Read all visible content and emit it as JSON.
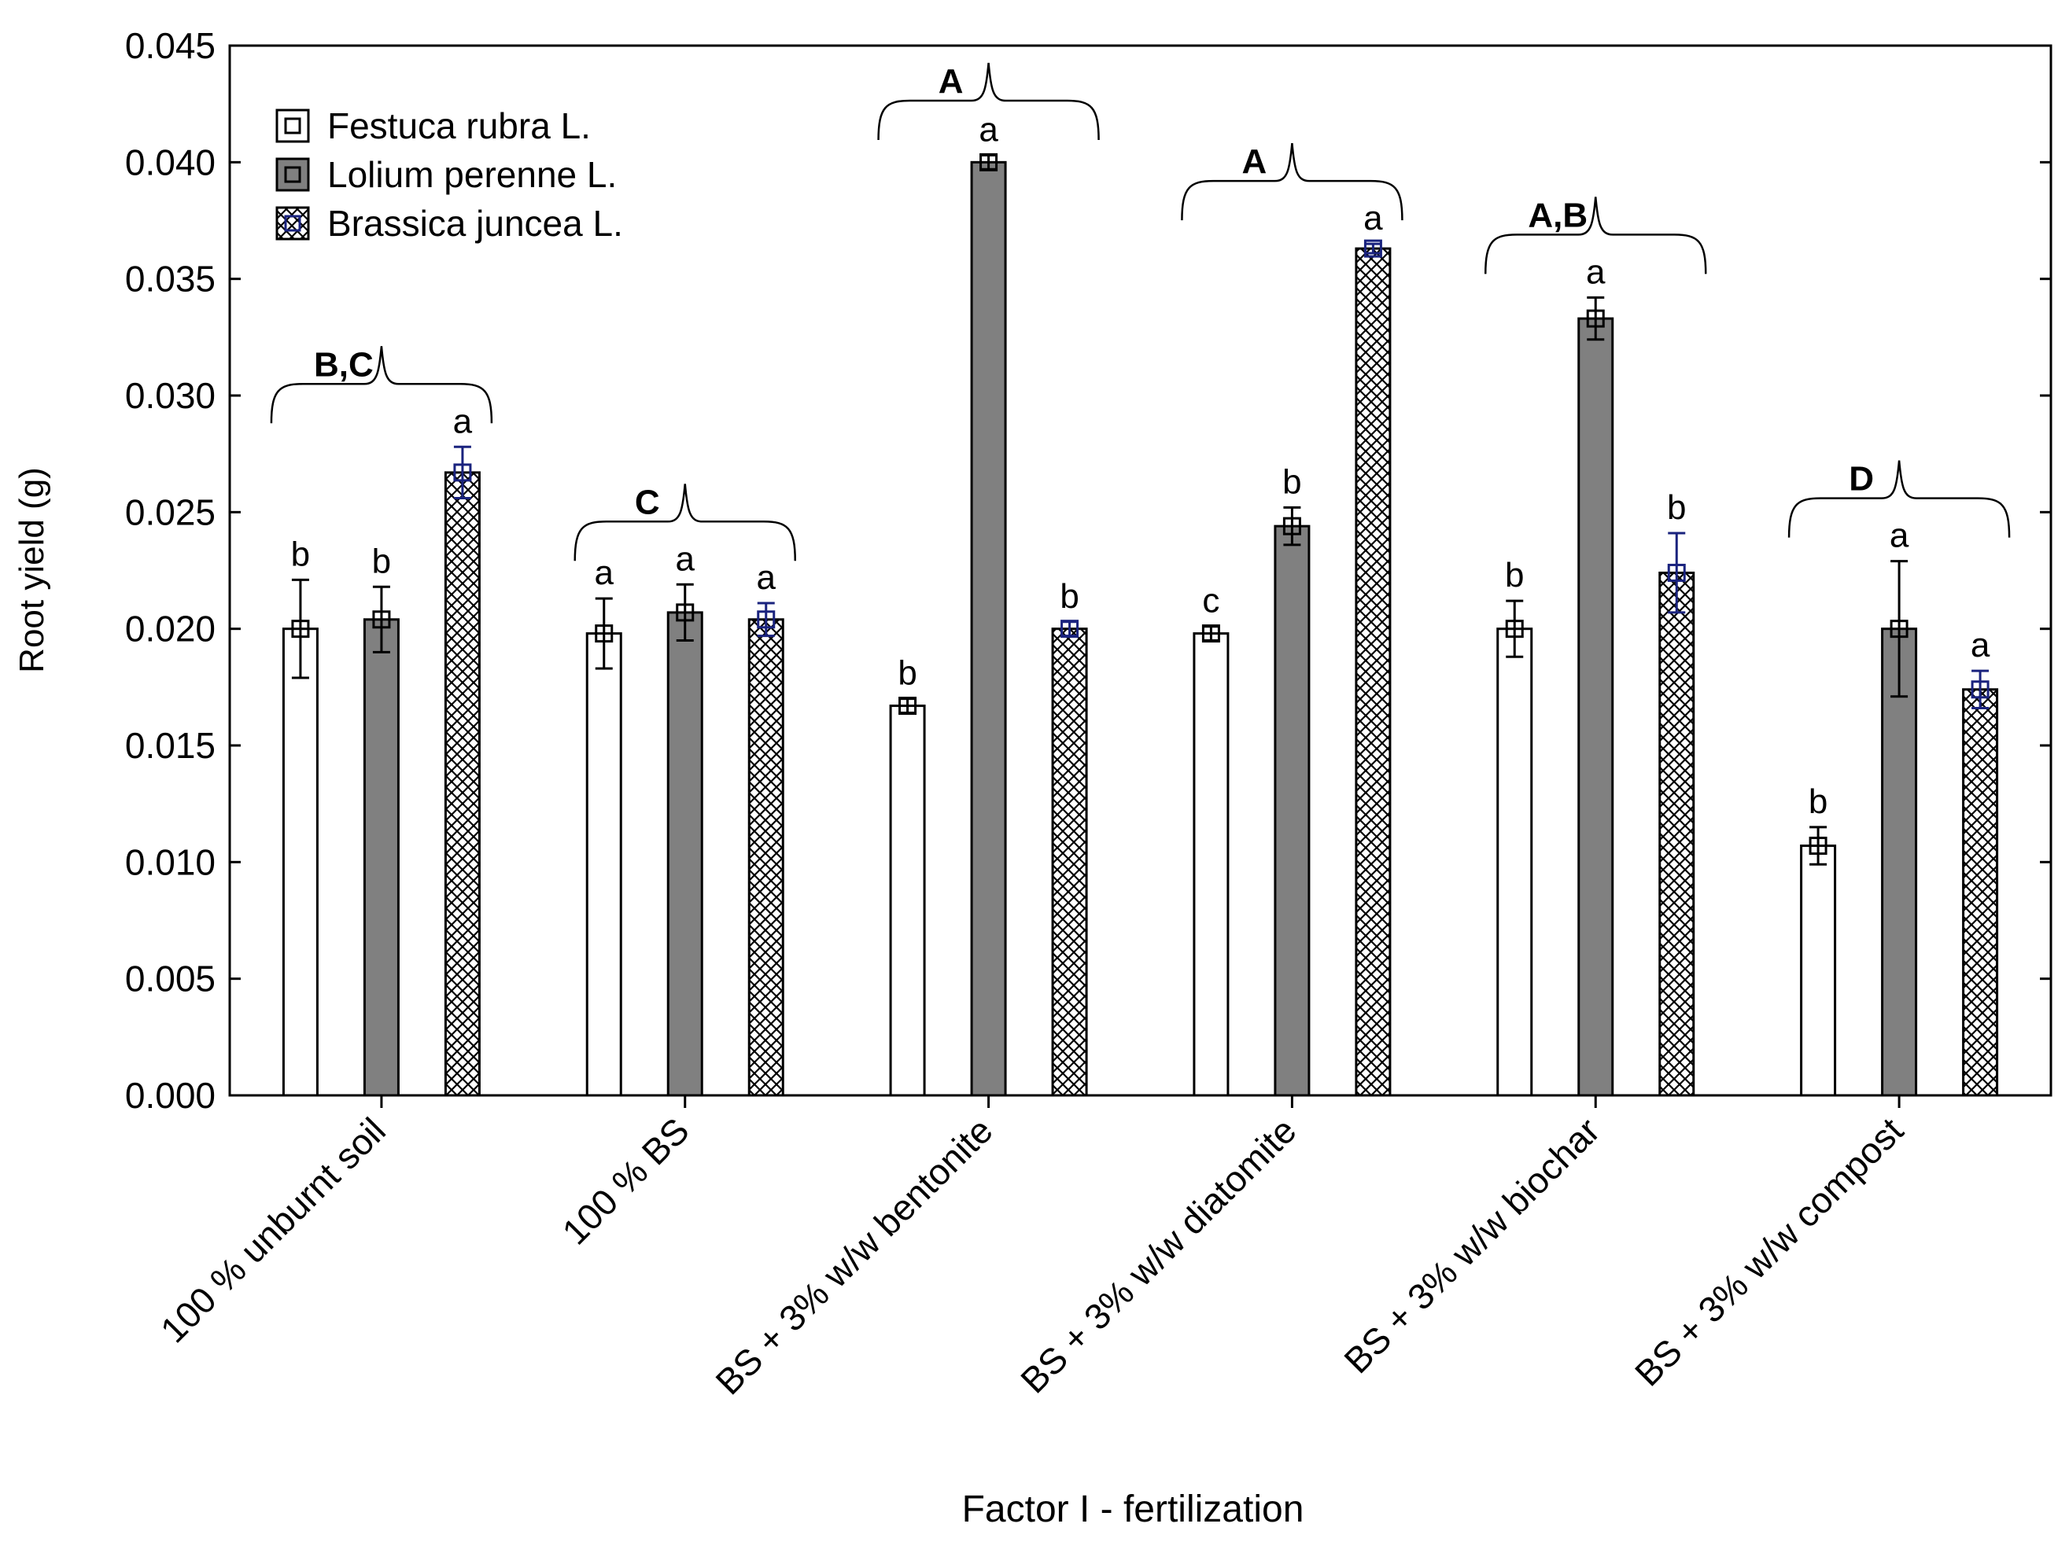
{
  "chart_data": {
    "type": "bar",
    "title": "",
    "xlabel": "Factor I - fertilization",
    "ylabel": "Root yield (g)",
    "ylim": [
      0,
      0.045
    ],
    "yticks": [
      "0.000",
      "0.005",
      "0.010",
      "0.015",
      "0.020",
      "0.025",
      "0.030",
      "0.035",
      "0.040",
      "0.045"
    ],
    "grid": false,
    "legend_position": "top-left",
    "categories": [
      "100 % unburnt soil",
      "100 % BS",
      "BS + 3% w/w bentonite",
      "BS + 3% w/w diatomite",
      "BS + 3% w/w biochar",
      "BS + 3% w/w compost"
    ],
    "group_labels": [
      "B,C",
      "C",
      "A",
      "A",
      "A,B",
      "D"
    ],
    "series": [
      {
        "name": "Festuca rubra L.",
        "fill": "white",
        "values": [
          0.02,
          0.0198,
          0.0167,
          0.0198,
          0.02,
          0.0107
        ],
        "errors": [
          0.0021,
          0.0015,
          0.0003,
          0.0003,
          0.0012,
          0.0008
        ],
        "letters": [
          "b",
          "a",
          "b",
          "c",
          "b",
          "b"
        ]
      },
      {
        "name": "Lolium perenne L.",
        "fill": "gray",
        "values": [
          0.0204,
          0.0207,
          0.04,
          0.0244,
          0.0333,
          0.02
        ],
        "errors": [
          0.0014,
          0.0012,
          0.0003,
          0.0008,
          0.0009,
          0.0029
        ],
        "letters": [
          "b",
          "a",
          "a",
          "b",
          "a",
          "a"
        ]
      },
      {
        "name": "Brassica juncea L.",
        "fill": "crosshatch",
        "values": [
          0.0267,
          0.0204,
          0.02,
          0.0363,
          0.0224,
          0.0174
        ],
        "errors": [
          0.0011,
          0.0007,
          0.0003,
          0.0002,
          0.0017,
          0.0008
        ],
        "letters": [
          "a",
          "a",
          "b",
          "a",
          "b",
          "a"
        ]
      }
    ]
  }
}
